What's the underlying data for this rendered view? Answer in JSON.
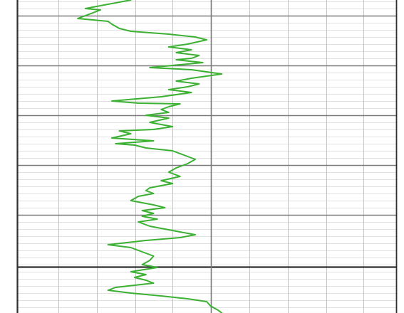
{
  "chart_data": {
    "type": "line",
    "title": "",
    "xlabel": "",
    "ylabel": "",
    "grid": true,
    "x_range": [
      0,
      10
    ],
    "y_range": [
      0,
      440
    ],
    "series": [
      {
        "color": "#3bb033",
        "points": [
          [
            3.0,
            0
          ],
          [
            1.8,
            12
          ],
          [
            2.2,
            14
          ],
          [
            1.6,
            26
          ],
          [
            2.4,
            30
          ],
          [
            2.5,
            34
          ],
          [
            2.7,
            40
          ],
          [
            3.0,
            44
          ],
          [
            4.0,
            48
          ],
          [
            4.7,
            52
          ],
          [
            5.0,
            56
          ],
          [
            4.5,
            62
          ],
          [
            4.0,
            66
          ],
          [
            4.6,
            70
          ],
          [
            4.2,
            74
          ],
          [
            4.8,
            78
          ],
          [
            4.6,
            82
          ],
          [
            4.2,
            84
          ],
          [
            4.9,
            88
          ],
          [
            3.5,
            95
          ],
          [
            4.6,
            98
          ],
          [
            5.4,
            104
          ],
          [
            4.6,
            110
          ],
          [
            4.2,
            114
          ],
          [
            4.8,
            118
          ],
          [
            4.5,
            122
          ],
          [
            4.0,
            126
          ],
          [
            4.6,
            130
          ],
          [
            3.8,
            136
          ],
          [
            2.5,
            142
          ],
          [
            3.2,
            145
          ],
          [
            4.3,
            146
          ],
          [
            4.0,
            150
          ],
          [
            3.8,
            154
          ],
          [
            4.0,
            158
          ],
          [
            3.4,
            162
          ],
          [
            4.0,
            166
          ],
          [
            3.5,
            172
          ],
          [
            4.1,
            178
          ],
          [
            3.6,
            182
          ],
          [
            2.7,
            184
          ],
          [
            3.0,
            188
          ],
          [
            2.5,
            194
          ],
          [
            3.6,
            198
          ],
          [
            2.6,
            202
          ],
          [
            3.1,
            204
          ],
          [
            3.4,
            208
          ],
          [
            4.1,
            212
          ],
          [
            4.4,
            218
          ],
          [
            4.7,
            224
          ],
          [
            4.5,
            230
          ],
          [
            4.2,
            236
          ],
          [
            4.0,
            242
          ],
          [
            4.3,
            248
          ],
          [
            3.8,
            254
          ],
          [
            4.1,
            258
          ],
          [
            3.5,
            264
          ],
          [
            3.4,
            268
          ],
          [
            3.6,
            272
          ],
          [
            3.2,
            276
          ],
          [
            3.0,
            282
          ],
          [
            3.6,
            288
          ],
          [
            3.9,
            292
          ],
          [
            3.3,
            296
          ],
          [
            3.6,
            300
          ],
          [
            3.3,
            304
          ],
          [
            3.7,
            308
          ],
          [
            3.2,
            312
          ],
          [
            3.5,
            318
          ],
          [
            3.9,
            322
          ],
          [
            4.7,
            330
          ],
          [
            4.3,
            334
          ],
          [
            3.4,
            338
          ],
          [
            2.4,
            344
          ],
          [
            3.0,
            348
          ],
          [
            3.2,
            352
          ],
          [
            3.4,
            356
          ],
          [
            3.6,
            360
          ],
          [
            3.5,
            366
          ],
          [
            3.3,
            372
          ],
          [
            3.7,
            376
          ],
          [
            3.0,
            382
          ],
          [
            3.4,
            386
          ],
          [
            3.1,
            390
          ],
          [
            3.4,
            394
          ],
          [
            3.6,
            398
          ],
          [
            2.6,
            404
          ],
          [
            2.4,
            408
          ],
          [
            3.0,
            412
          ],
          [
            3.8,
            416
          ],
          [
            4.5,
            420
          ],
          [
            5.0,
            424
          ],
          [
            5.1,
            430
          ],
          [
            5.3,
            436
          ],
          [
            5.4,
            440
          ]
        ]
      }
    ]
  },
  "colors": {
    "line": "#3bb033",
    "grid_minor": "#d7d7d7",
    "grid_mid": "#c2c2c2",
    "grid_major": "#7a7a7a",
    "border": "#2f2f2f"
  }
}
